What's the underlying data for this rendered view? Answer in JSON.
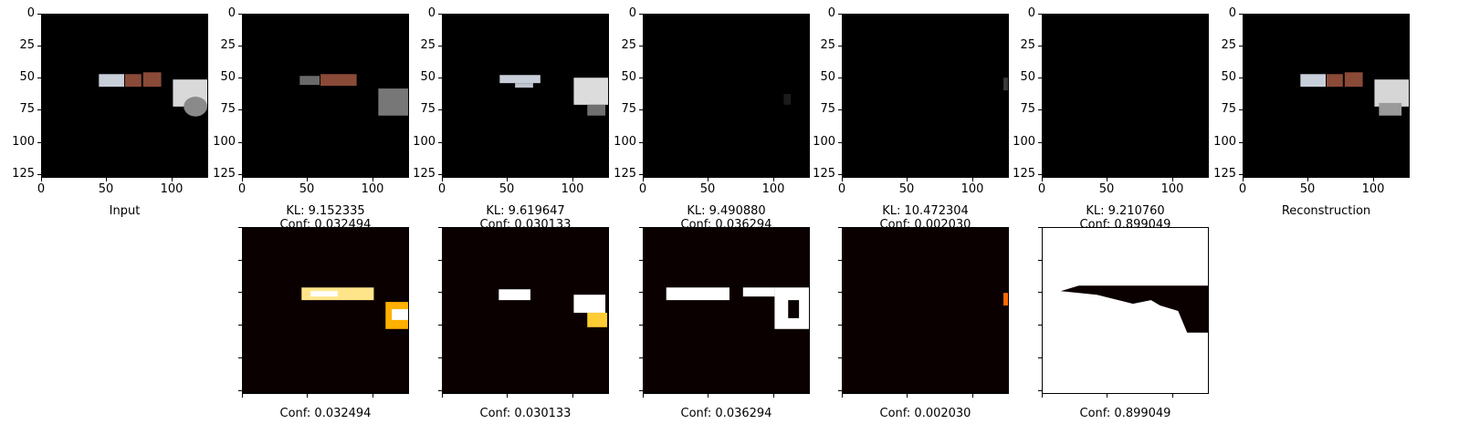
{
  "figure": {
    "top_row": [
      {
        "name": "input-panel",
        "kind": "image",
        "caption": [
          "Input"
        ]
      },
      {
        "name": "component-1-panel",
        "kind": "image",
        "caption": [
          "KL: 9.152335",
          "Conf: 0.032494"
        ]
      },
      {
        "name": "component-2-panel",
        "kind": "image",
        "caption": [
          "KL: 9.619647",
          "Conf: 0.030133"
        ]
      },
      {
        "name": "component-3-panel",
        "kind": "image",
        "caption": [
          "KL: 9.490880",
          "Conf: 0.036294"
        ]
      },
      {
        "name": "component-4-panel",
        "kind": "image",
        "caption": [
          "KL: 10.472304",
          "Conf: 0.002030"
        ]
      },
      {
        "name": "component-5-panel",
        "kind": "image",
        "caption": [
          "KL: 9.210760",
          "Conf: 0.899049"
        ]
      },
      {
        "name": "reconstruction-panel",
        "kind": "image",
        "caption": [
          "Reconstruction"
        ]
      }
    ],
    "bottom_row": [
      {
        "name": "mask-1-panel",
        "caption": "Conf: 0.032494"
      },
      {
        "name": "mask-2-panel",
        "caption": "Conf: 0.030133"
      },
      {
        "name": "mask-3-panel",
        "caption": "Conf: 0.036294"
      },
      {
        "name": "mask-4-panel",
        "caption": "Conf: 0.002030"
      },
      {
        "name": "mask-5-panel",
        "caption": "Conf: 0.899049"
      }
    ],
    "y_ticks": [
      "0",
      "25",
      "50",
      "75",
      "100",
      "125"
    ],
    "x_ticks": [
      "0",
      "50",
      "100"
    ],
    "colors": {
      "background": "#000000",
      "heat_low": "#0b0000",
      "heat_high": "#ffffff",
      "car_body": "#8a4a38",
      "car_silver": "#c8cfd8"
    }
  }
}
